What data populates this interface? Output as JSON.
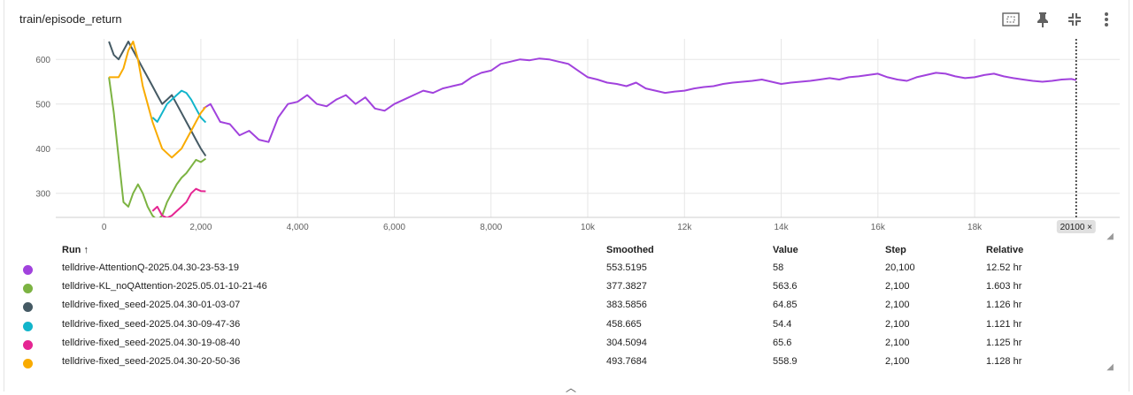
{
  "card_title": "train/episode_return",
  "toolbar": {
    "fit_icon": "fit-domain-icon",
    "pin_icon": "pin-icon",
    "minimize_icon": "minimize-icon",
    "more_icon": "more-vert-icon"
  },
  "chart_data": {
    "type": "line",
    "title": "train/episode_return",
    "xlabel": "",
    "ylabel": "",
    "xlim": [
      -1000,
      21000
    ],
    "ylim": [
      246,
      646
    ],
    "x_ticks": [
      0,
      2000,
      4000,
      6000,
      8000,
      10000,
      12000,
      14000,
      16000,
      18000
    ],
    "x_tick_labels": [
      "0",
      "2,000",
      "4,000",
      "6,000",
      "8,000",
      "10k",
      "12k",
      "14k",
      "16k",
      "18k"
    ],
    "y_ticks": [
      300,
      400,
      500,
      600
    ],
    "y_tick_labels": [
      "300",
      "400",
      "500",
      "600"
    ],
    "grid": true,
    "cursor_step": 20100,
    "cursor_label": "20100 ×",
    "series": [
      {
        "name": "telldrive-AttentionQ-2025.04.30-23-53-19",
        "color": "#a142dd",
        "x": [
          2050,
          2200,
          2400,
          2600,
          2800,
          3000,
          3200,
          3400,
          3600,
          3800,
          4000,
          4200,
          4400,
          4600,
          4800,
          5000,
          5200,
          5400,
          5600,
          5800,
          6000,
          6200,
          6400,
          6600,
          6800,
          7000,
          7200,
          7400,
          7600,
          7800,
          8000,
          8200,
          8400,
          8600,
          8800,
          9000,
          9200,
          9400,
          9600,
          9800,
          10000,
          10200,
          10400,
          10600,
          10800,
          11000,
          11200,
          11400,
          11600,
          11800,
          12000,
          12200,
          12400,
          12600,
          12800,
          13000,
          13200,
          13400,
          13600,
          13800,
          14000,
          14200,
          14400,
          14600,
          14800,
          15000,
          15200,
          15400,
          15600,
          15800,
          16000,
          16200,
          16400,
          16600,
          16800,
          17000,
          17200,
          17400,
          17600,
          17800,
          18000,
          18200,
          18400,
          18600,
          18800,
          19000,
          19200,
          19400,
          19600,
          19800,
          20000,
          20100
        ],
        "y": [
          490,
          500,
          460,
          455,
          430,
          440,
          420,
          415,
          470,
          500,
          505,
          520,
          500,
          495,
          510,
          520,
          500,
          515,
          490,
          485,
          500,
          510,
          520,
          530,
          525,
          535,
          540,
          545,
          560,
          570,
          575,
          590,
          595,
          600,
          598,
          602,
          600,
          595,
          590,
          575,
          560,
          555,
          548,
          545,
          540,
          548,
          535,
          530,
          525,
          528,
          530,
          535,
          538,
          540,
          545,
          548,
          550,
          552,
          555,
          550,
          545,
          548,
          550,
          552,
          555,
          558,
          555,
          560,
          562,
          565,
          568,
          560,
          555,
          552,
          560,
          565,
          570,
          568,
          562,
          558,
          560,
          565,
          568,
          562,
          558,
          555,
          552,
          550,
          552,
          555,
          556,
          553.5
        ]
      },
      {
        "name": "telldrive-KL_noQAttention-2025.05.01-10-21-46",
        "color": "#7cb342",
        "x": [
          100,
          200,
          300,
          400,
          500,
          600,
          700,
          800,
          900,
          1000,
          1100,
          1200,
          1300,
          1400,
          1500,
          1600,
          1700,
          1800,
          1900,
          2000,
          2100
        ],
        "y": [
          560,
          480,
          380,
          280,
          270,
          300,
          320,
          300,
          270,
          250,
          240,
          250,
          280,
          300,
          320,
          335,
          345,
          360,
          375,
          370,
          377.4
        ]
      },
      {
        "name": "telldrive-fixed_seed-2025.04.30-01-03-07",
        "color": "#455a64",
        "x": [
          100,
          200,
          300,
          400,
          500,
          600,
          700,
          800,
          900,
          1000,
          1100,
          1200,
          1300,
          1400,
          1500,
          1600,
          1700,
          1800,
          1900,
          2000,
          2100
        ],
        "y": [
          640,
          610,
          600,
          620,
          640,
          620,
          600,
          580,
          560,
          540,
          520,
          500,
          510,
          520,
          500,
          480,
          460,
          440,
          420,
          400,
          383.6
        ]
      },
      {
        "name": "telldrive-fixed_seed-2025.04.30-09-47-36",
        "color": "#12b5cb",
        "x": [
          1000,
          1100,
          1200,
          1300,
          1400,
          1500,
          1600,
          1700,
          1800,
          1900,
          2000,
          2100
        ],
        "y": [
          470,
          460,
          480,
          500,
          510,
          520,
          530,
          525,
          510,
          490,
          470,
          458.7
        ]
      },
      {
        "name": "telldrive-fixed_seed-2025.04.30-19-08-40",
        "color": "#e52592",
        "x": [
          1000,
          1100,
          1200,
          1300,
          1400,
          1500,
          1600,
          1700,
          1800,
          1900,
          2000,
          2100
        ],
        "y": [
          260,
          270,
          250,
          245,
          250,
          260,
          270,
          280,
          300,
          310,
          305,
          304.5
        ]
      },
      {
        "name": "telldrive-fixed_seed-2025.04.30-20-50-36",
        "color": "#f9ab00",
        "x": [
          100,
          200,
          300,
          400,
          500,
          600,
          700,
          800,
          900,
          1000,
          1100,
          1200,
          1300,
          1400,
          1500,
          1600,
          1700,
          1800,
          1900,
          2000,
          2100
        ],
        "y": [
          560,
          560,
          560,
          580,
          620,
          640,
          600,
          540,
          500,
          460,
          430,
          400,
          390,
          380,
          390,
          400,
          420,
          440,
          460,
          480,
          493.8
        ]
      }
    ]
  },
  "table": {
    "headers": {
      "run": "Run ↑",
      "smoothed": "Smoothed",
      "value": "Value",
      "step": "Step",
      "relative": "Relative"
    },
    "rows": [
      {
        "color": "#a142dd",
        "run": "telldrive-AttentionQ-2025.04.30-23-53-19",
        "smoothed": "553.5195",
        "value": "58",
        "step": "20,100",
        "relative": "12.52 hr"
      },
      {
        "color": "#7cb342",
        "run": "telldrive-KL_noQAttention-2025.05.01-10-21-46",
        "smoothed": "377.3827",
        "value": "563.6",
        "step": "2,100",
        "relative": "1.603 hr"
      },
      {
        "color": "#455a64",
        "run": "telldrive-fixed_seed-2025.04.30-01-03-07",
        "smoothed": "383.5856",
        "value": "64.85",
        "step": "2,100",
        "relative": "1.126 hr"
      },
      {
        "color": "#12b5cb",
        "run": "telldrive-fixed_seed-2025.04.30-09-47-36",
        "smoothed": "458.665",
        "value": "54.4",
        "step": "2,100",
        "relative": "1.121 hr"
      },
      {
        "color": "#e52592",
        "run": "telldrive-fixed_seed-2025.04.30-19-08-40",
        "smoothed": "304.5094",
        "value": "65.6",
        "step": "2,100",
        "relative": "1.125 hr"
      },
      {
        "color": "#f9ab00",
        "run": "telldrive-fixed_seed-2025.04.30-20-50-36",
        "smoothed": "493.7684",
        "value": "558.9",
        "step": "2,100",
        "relative": "1.128 hr"
      }
    ]
  }
}
